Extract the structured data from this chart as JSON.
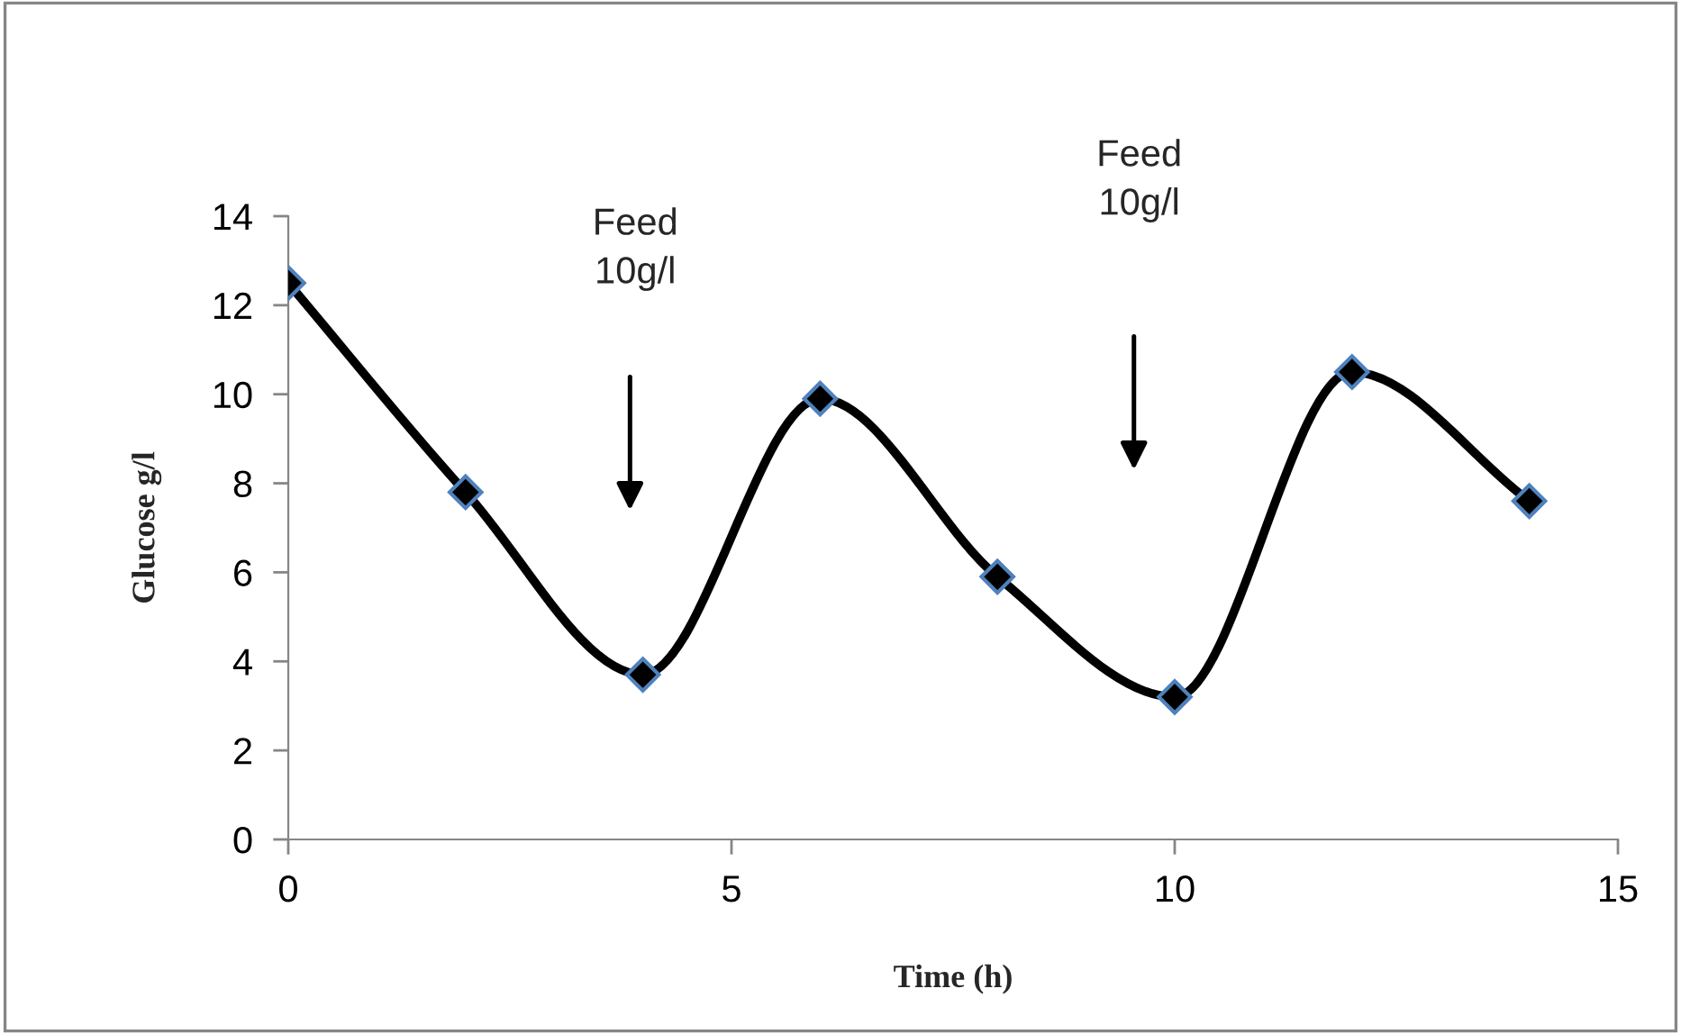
{
  "chart_data": {
    "type": "line",
    "xlabel": "Time (h)",
    "ylabel": "Glucose g/l",
    "x": [
      0,
      2,
      4,
      6,
      8,
      10,
      12,
      14
    ],
    "series": [
      {
        "color": "#000000",
        "values": [
          12.5,
          7.8,
          3.7,
          9.9,
          5.9,
          3.2,
          10.5,
          7.6
        ]
      }
    ],
    "xlim": [
      0,
      15
    ],
    "xticks": [
      0,
      5,
      10,
      15
    ],
    "ylim": [
      0,
      14
    ],
    "yticks": [
      0,
      2,
      4,
      6,
      8,
      10,
      12,
      14
    ],
    "grid": false,
    "legend": false,
    "marker": "diamond",
    "line_style": "solid",
    "annotations": [
      "Feed\n10g/l",
      "Feed\n10g/l"
    ]
  }
}
